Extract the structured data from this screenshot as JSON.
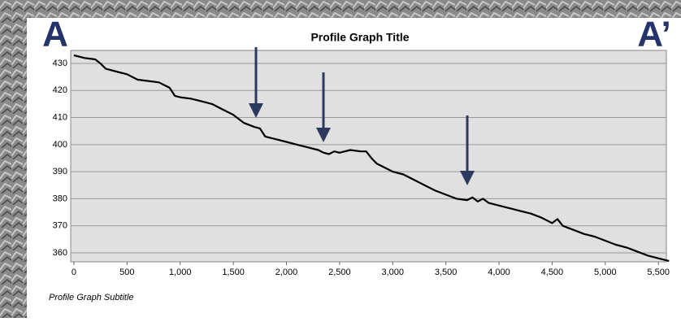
{
  "chart_data": {
    "type": "line",
    "title": "Profile Graph Title",
    "subtitle": "Profile Graph Subtitle",
    "start_label": "A",
    "end_label": "A’",
    "x": [
      0,
      100,
      200,
      250,
      300,
      400,
      500,
      600,
      700,
      800,
      900,
      950,
      1000,
      1100,
      1200,
      1300,
      1400,
      1500,
      1600,
      1700,
      1750,
      1800,
      1900,
      2000,
      2100,
      2200,
      2300,
      2350,
      2400,
      2450,
      2500,
      2600,
      2700,
      2750,
      2800,
      2850,
      2900,
      3000,
      3100,
      3200,
      3300,
      3400,
      3500,
      3600,
      3700,
      3750,
      3800,
      3850,
      3900,
      4000,
      4100,
      4200,
      4300,
      4400,
      4500,
      4550,
      4600,
      4700,
      4800,
      4900,
      5000,
      5100,
      5200,
      5300,
      5400,
      5500,
      5600
    ],
    "values": [
      433,
      432,
      431.5,
      430,
      428,
      427,
      426,
      424,
      423.5,
      423,
      421,
      418,
      417.5,
      417,
      416,
      415,
      413,
      411,
      408,
      406.5,
      406,
      403,
      402,
      401,
      400,
      399,
      398,
      397,
      396.5,
      397.5,
      397,
      398,
      397.5,
      397.5,
      395,
      393,
      392,
      390,
      389,
      387,
      385,
      383,
      381.5,
      380,
      379.5,
      380.5,
      379,
      380,
      378.5,
      377.5,
      376.5,
      375.5,
      374.5,
      373,
      371,
      372.5,
      370,
      368.5,
      367,
      366,
      364.5,
      363,
      362,
      360.5,
      359,
      358,
      357
    ],
    "color": "#000000",
    "xlim": [
      -30,
      5575
    ],
    "ylim": [
      356.7,
      434.8
    ],
    "xticks": [
      0,
      500,
      {
        "value": 1000,
        "label": "1,000"
      },
      {
        "value": 1500,
        "label": "1,500"
      },
      {
        "value": 2000,
        "label": "2,000"
      },
      {
        "value": 2500,
        "label": "2,500"
      },
      {
        "value": 3000,
        "label": "3,000"
      },
      {
        "value": 3500,
        "label": "3,500"
      },
      {
        "value": 4000,
        "label": "4,000"
      },
      {
        "value": 4500,
        "label": "4,500"
      },
      {
        "value": 5000,
        "label": "5,000"
      },
      {
        "value": 5500,
        "label": "5,500"
      }
    ],
    "yticks": [
      360,
      370,
      380,
      390,
      400,
      410,
      420,
      430
    ],
    "grid": true
  }
}
